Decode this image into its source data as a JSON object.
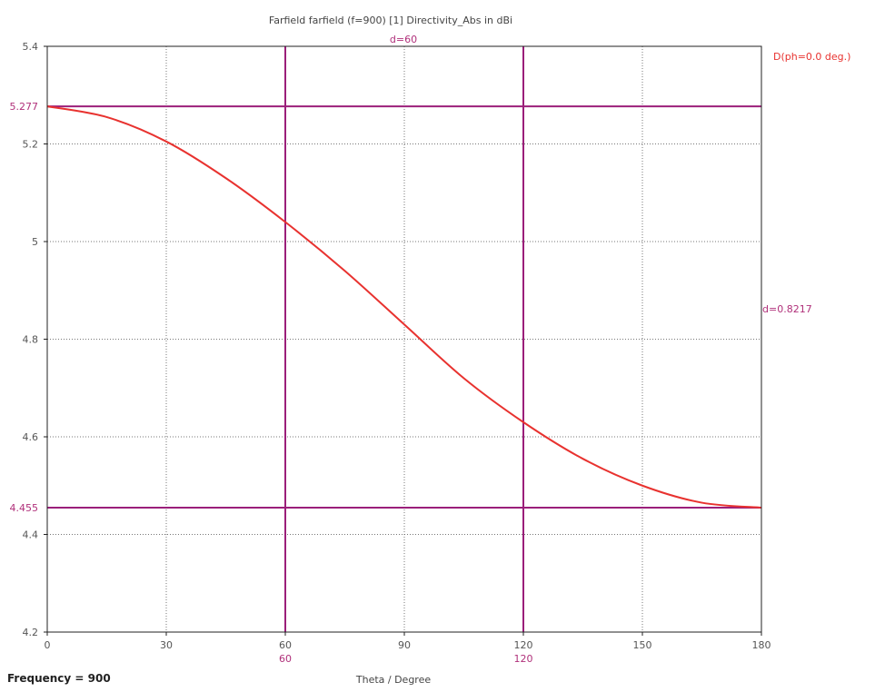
{
  "chart_data": {
    "type": "line",
    "title": "Farfield farfield (f=900) [1] Directivity_Abs in dBi",
    "xlabel": "Theta / Degree",
    "ylabel": "",
    "xlim": [
      0,
      180
    ],
    "ylim": [
      4.2,
      5.4
    ],
    "x_ticks": [
      "0",
      "30",
      "60",
      "90",
      "120",
      "150",
      "180"
    ],
    "y_ticks": [
      "4.2",
      "4.4",
      "4.6",
      "4.8",
      "5",
      "5.2",
      "5.4"
    ],
    "grid": true,
    "legend_position": "top-right",
    "series": [
      {
        "name": "D(ph=0.0 deg.)",
        "color": "#e8322f",
        "x": [
          0,
          15,
          30,
          45,
          60,
          75,
          90,
          105,
          120,
          135,
          150,
          165,
          180
        ],
        "y": [
          5.277,
          5.255,
          5.205,
          5.13,
          5.04,
          4.94,
          4.83,
          4.72,
          4.63,
          4.555,
          4.5,
          4.465,
          4.455
        ]
      }
    ],
    "markers": {
      "color": "#9b1f7a",
      "vertical_lines": [
        60,
        120
      ],
      "vertical_labels": [
        "60",
        "120"
      ],
      "horizontal_lines": [
        5.277,
        4.455
      ],
      "horizontal_labels": [
        "5.277",
        "4.455"
      ],
      "delta_x_label": "d=60",
      "delta_y_label": "d=0.8217"
    }
  },
  "footer": {
    "frequency_label": "Frequency = 900"
  }
}
